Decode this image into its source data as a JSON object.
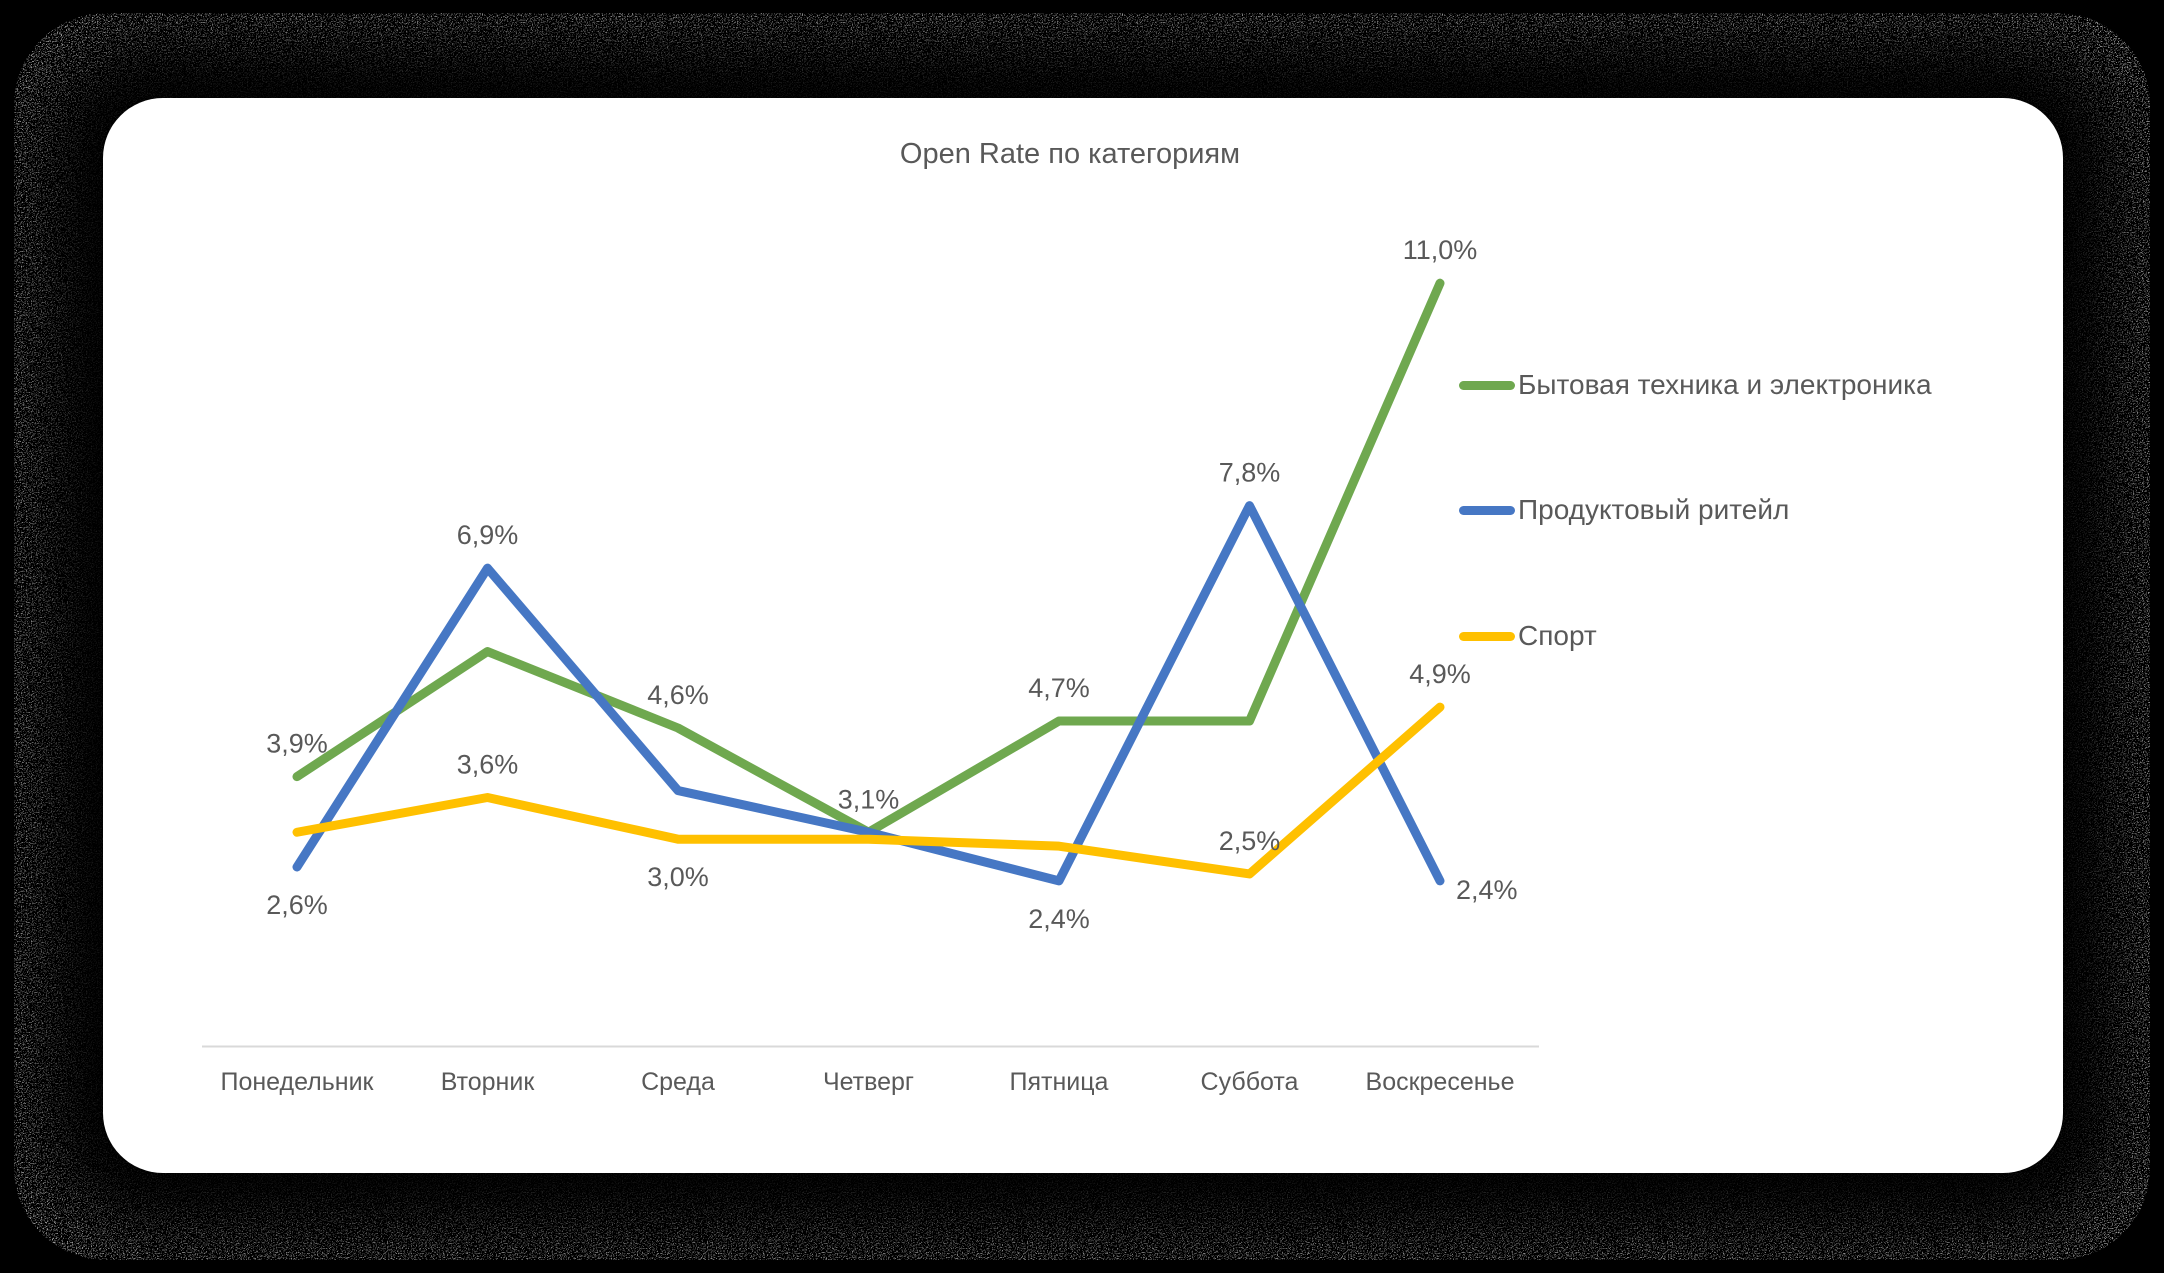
{
  "chart_data": {
    "type": "line",
    "title": "Open Rate по категориям",
    "categories": [
      "Понедельник",
      "Вторник",
      "Среда",
      "Четверг",
      "Пятница",
      "Суббота",
      "Воскресенье"
    ],
    "series": [
      {
        "name": "Бытовая техника и электроника",
        "color": "#6fa84f",
        "values": [
          3.9,
          5.7,
          4.6,
          3.1,
          4.7,
          4.7,
          11.0
        ],
        "point_labels": [
          {
            "text": "3,9%",
            "pos": "above"
          },
          null,
          {
            "text": "4,6%",
            "pos": "above"
          },
          {
            "text": "3,1%",
            "pos": "above"
          },
          {
            "text": "4,7%",
            "pos": "above"
          },
          null,
          {
            "text": "11,0%",
            "pos": "above"
          }
        ]
      },
      {
        "name": "Продуктовый ритейл",
        "color": "#4677c4",
        "values": [
          2.6,
          6.9,
          3.7,
          3.1,
          2.4,
          7.8,
          2.4
        ],
        "point_labels": [
          {
            "text": "2,6%",
            "pos": "below"
          },
          {
            "text": "6,9%",
            "pos": "above"
          },
          null,
          null,
          {
            "text": "2,4%",
            "pos": "below"
          },
          {
            "text": "7,8%",
            "pos": "above"
          },
          {
            "text": "2,4%",
            "pos": "right"
          }
        ]
      },
      {
        "name": "Спорт",
        "color": "#ffc000",
        "values": [
          3.1,
          3.6,
          3.0,
          3.0,
          2.9,
          2.5,
          4.9
        ],
        "point_labels": [
          null,
          {
            "text": "3,6%",
            "pos": "above"
          },
          {
            "text": "3,0%",
            "pos": "below"
          },
          null,
          null,
          {
            "text": "2,5%",
            "pos": "above"
          },
          {
            "text": "4,9%",
            "pos": "above"
          }
        ]
      }
    ],
    "legend_position": "right",
    "gridlines": false,
    "y_axis_visible": false,
    "x_axis_line_color": "#d9d9d9",
    "value_suffix": "%",
    "ylim": [
      0,
      11.5
    ]
  },
  "style": {
    "text_color": "#595959",
    "card_background": "#ffffff",
    "page_background": "#000000"
  }
}
